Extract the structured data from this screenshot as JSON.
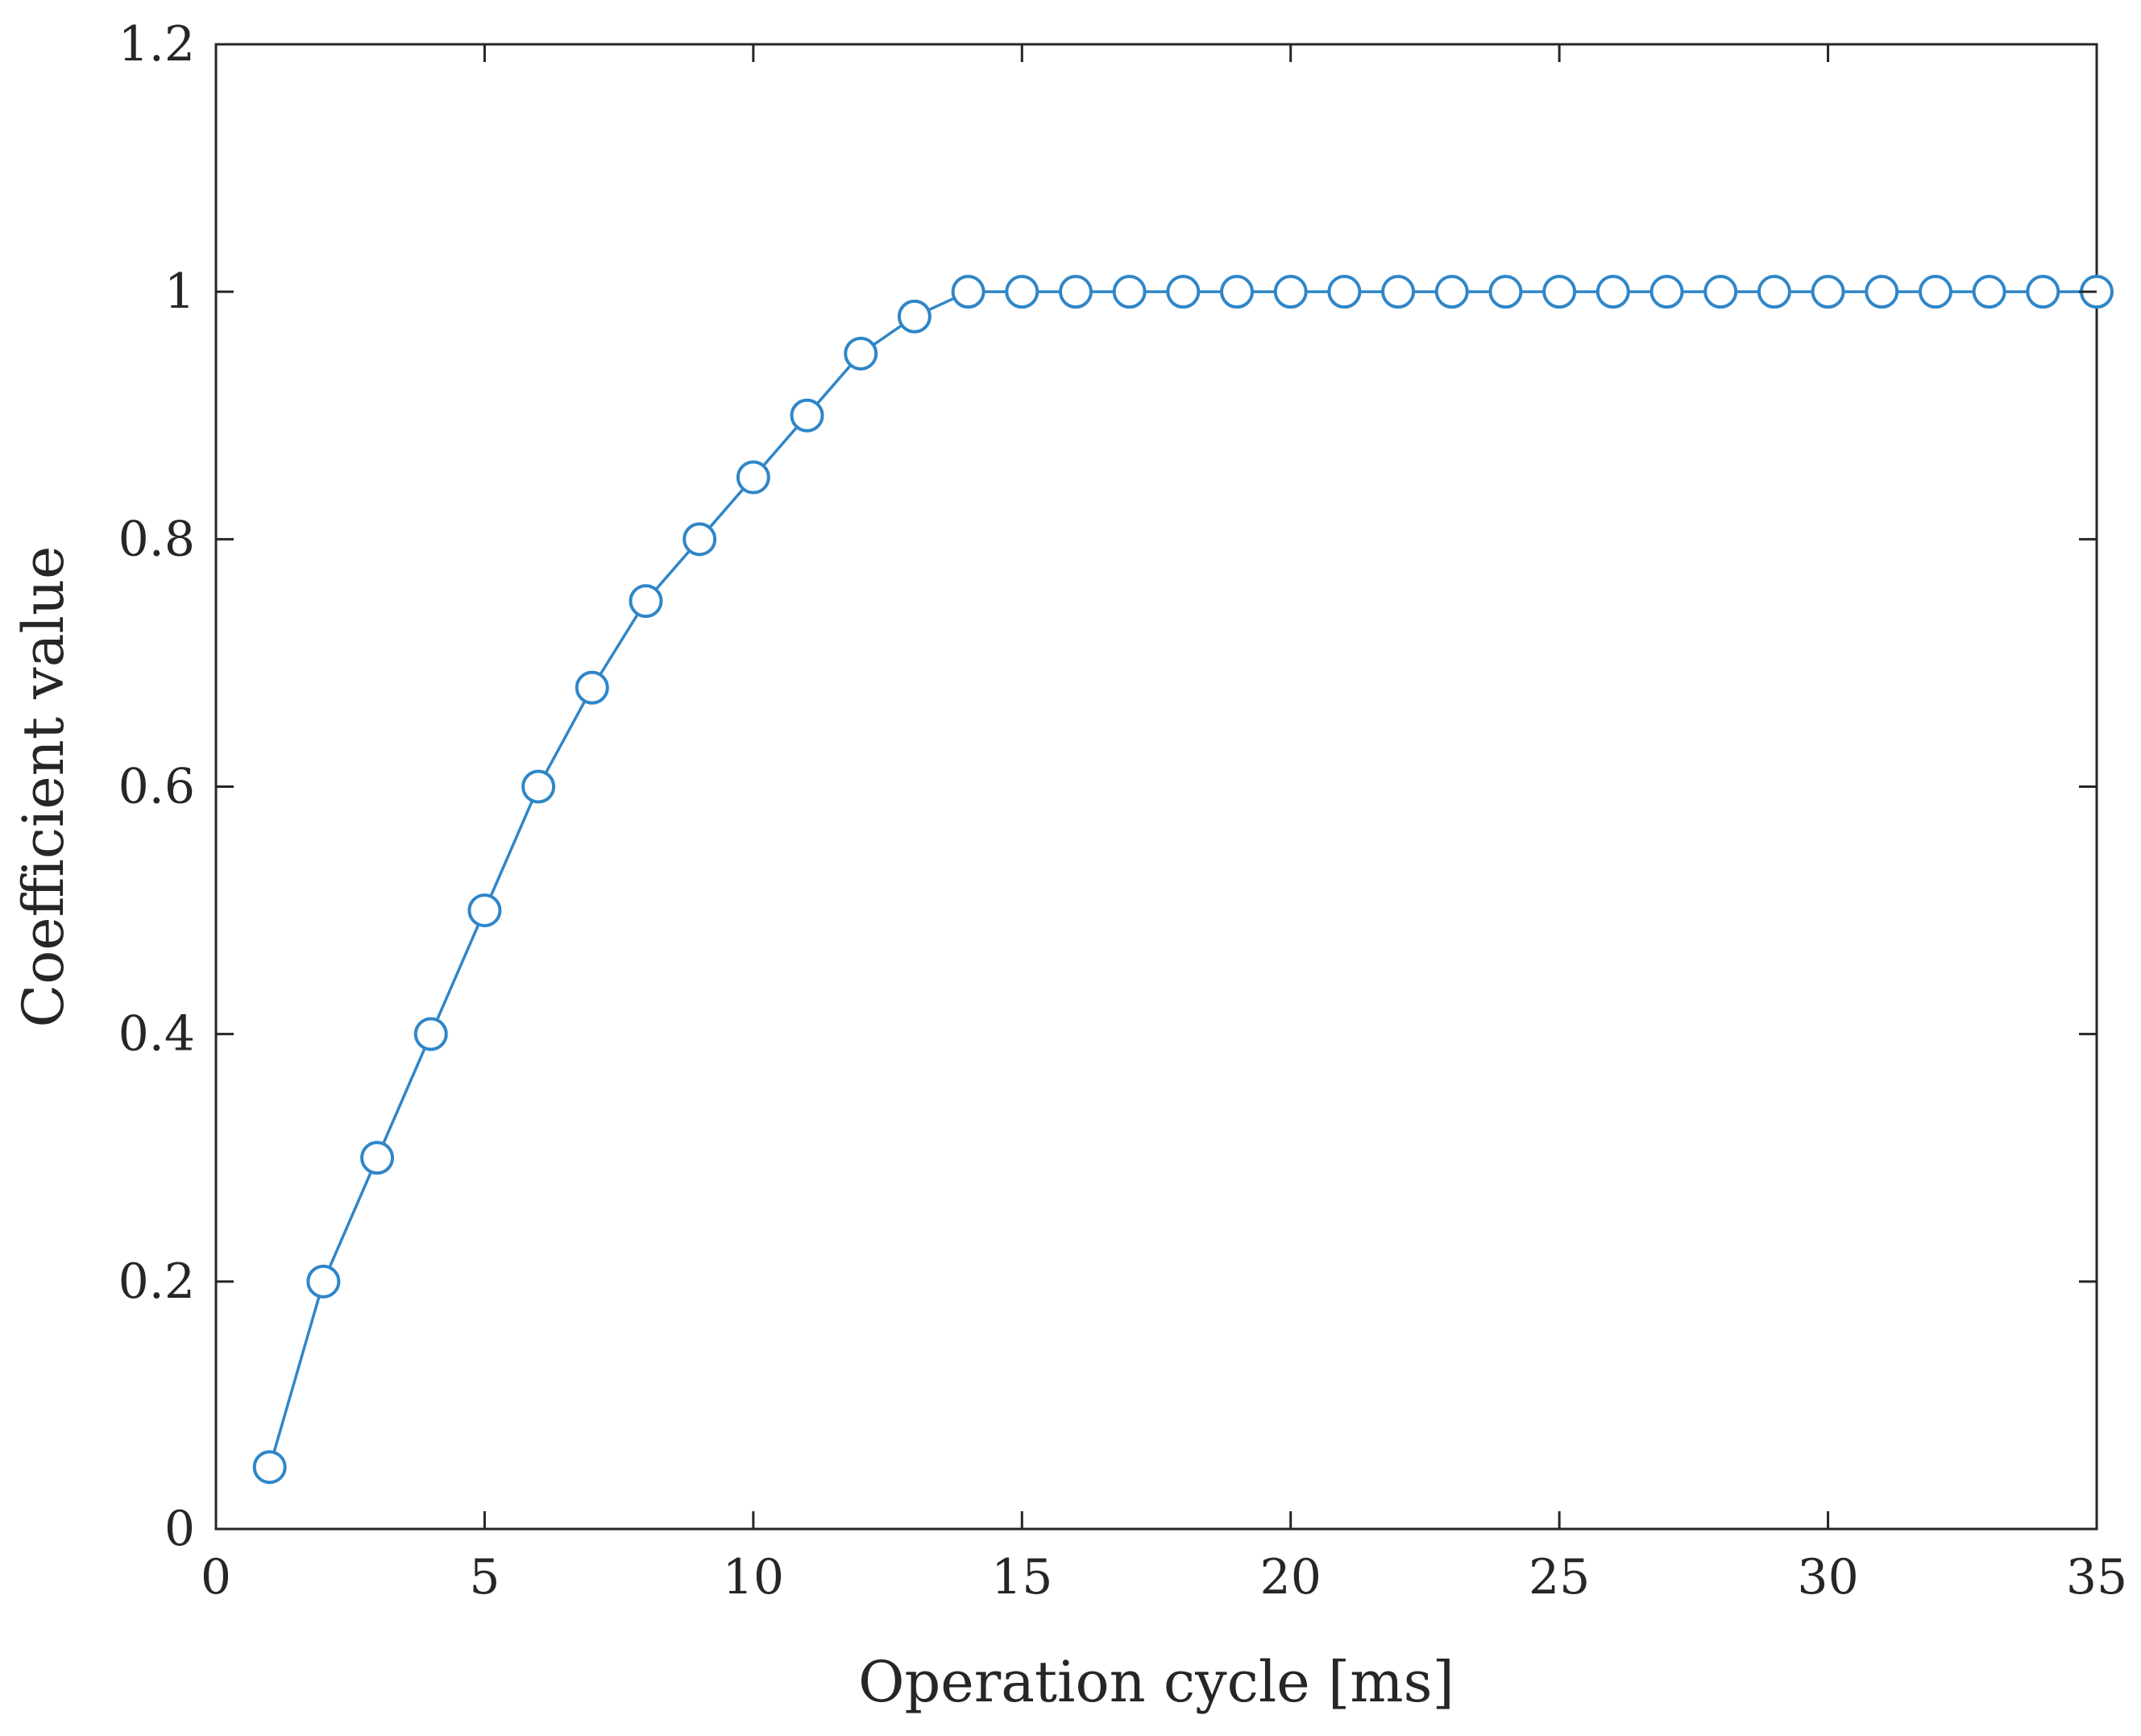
{
  "chart_data": {
    "type": "line",
    "title": "",
    "xlabel": "Operation cycle [ms]",
    "ylabel": "Coefficient value",
    "xlim": [
      0,
      35
    ],
    "ylim": [
      0,
      1.2
    ],
    "x_ticks": [
      0,
      5,
      10,
      15,
      20,
      25,
      30,
      35
    ],
    "x_tick_labels": [
      "0",
      "5",
      "10",
      "15",
      "20",
      "25",
      "30",
      "35"
    ],
    "y_ticks": [
      0,
      0.2,
      0.4,
      0.6,
      0.8,
      1.0,
      1.2
    ],
    "y_tick_labels": [
      "0",
      "0.2",
      "0.4",
      "0.6",
      "0.8",
      "1",
      "1.2"
    ],
    "grid": false,
    "legend": "none",
    "series_color": "#2f86c8",
    "series": [
      {
        "marker": "circle",
        "x": [
          1,
          2,
          3,
          4,
          5,
          6,
          7,
          8,
          9,
          10,
          11,
          12,
          13,
          14,
          15,
          16,
          17,
          18,
          19,
          20,
          21,
          22,
          23,
          24,
          25,
          26,
          27,
          28,
          29,
          30,
          31,
          32,
          33,
          34,
          35
        ],
        "y": [
          0.05,
          0.2,
          0.3,
          0.4,
          0.5,
          0.6,
          0.68,
          0.75,
          0.8,
          0.85,
          0.9,
          0.95,
          0.98,
          1,
          1,
          1,
          1,
          1,
          1,
          1,
          1,
          1,
          1,
          1,
          1,
          1,
          1,
          1,
          1,
          1,
          1,
          1,
          1,
          1,
          1
        ]
      }
    ]
  }
}
